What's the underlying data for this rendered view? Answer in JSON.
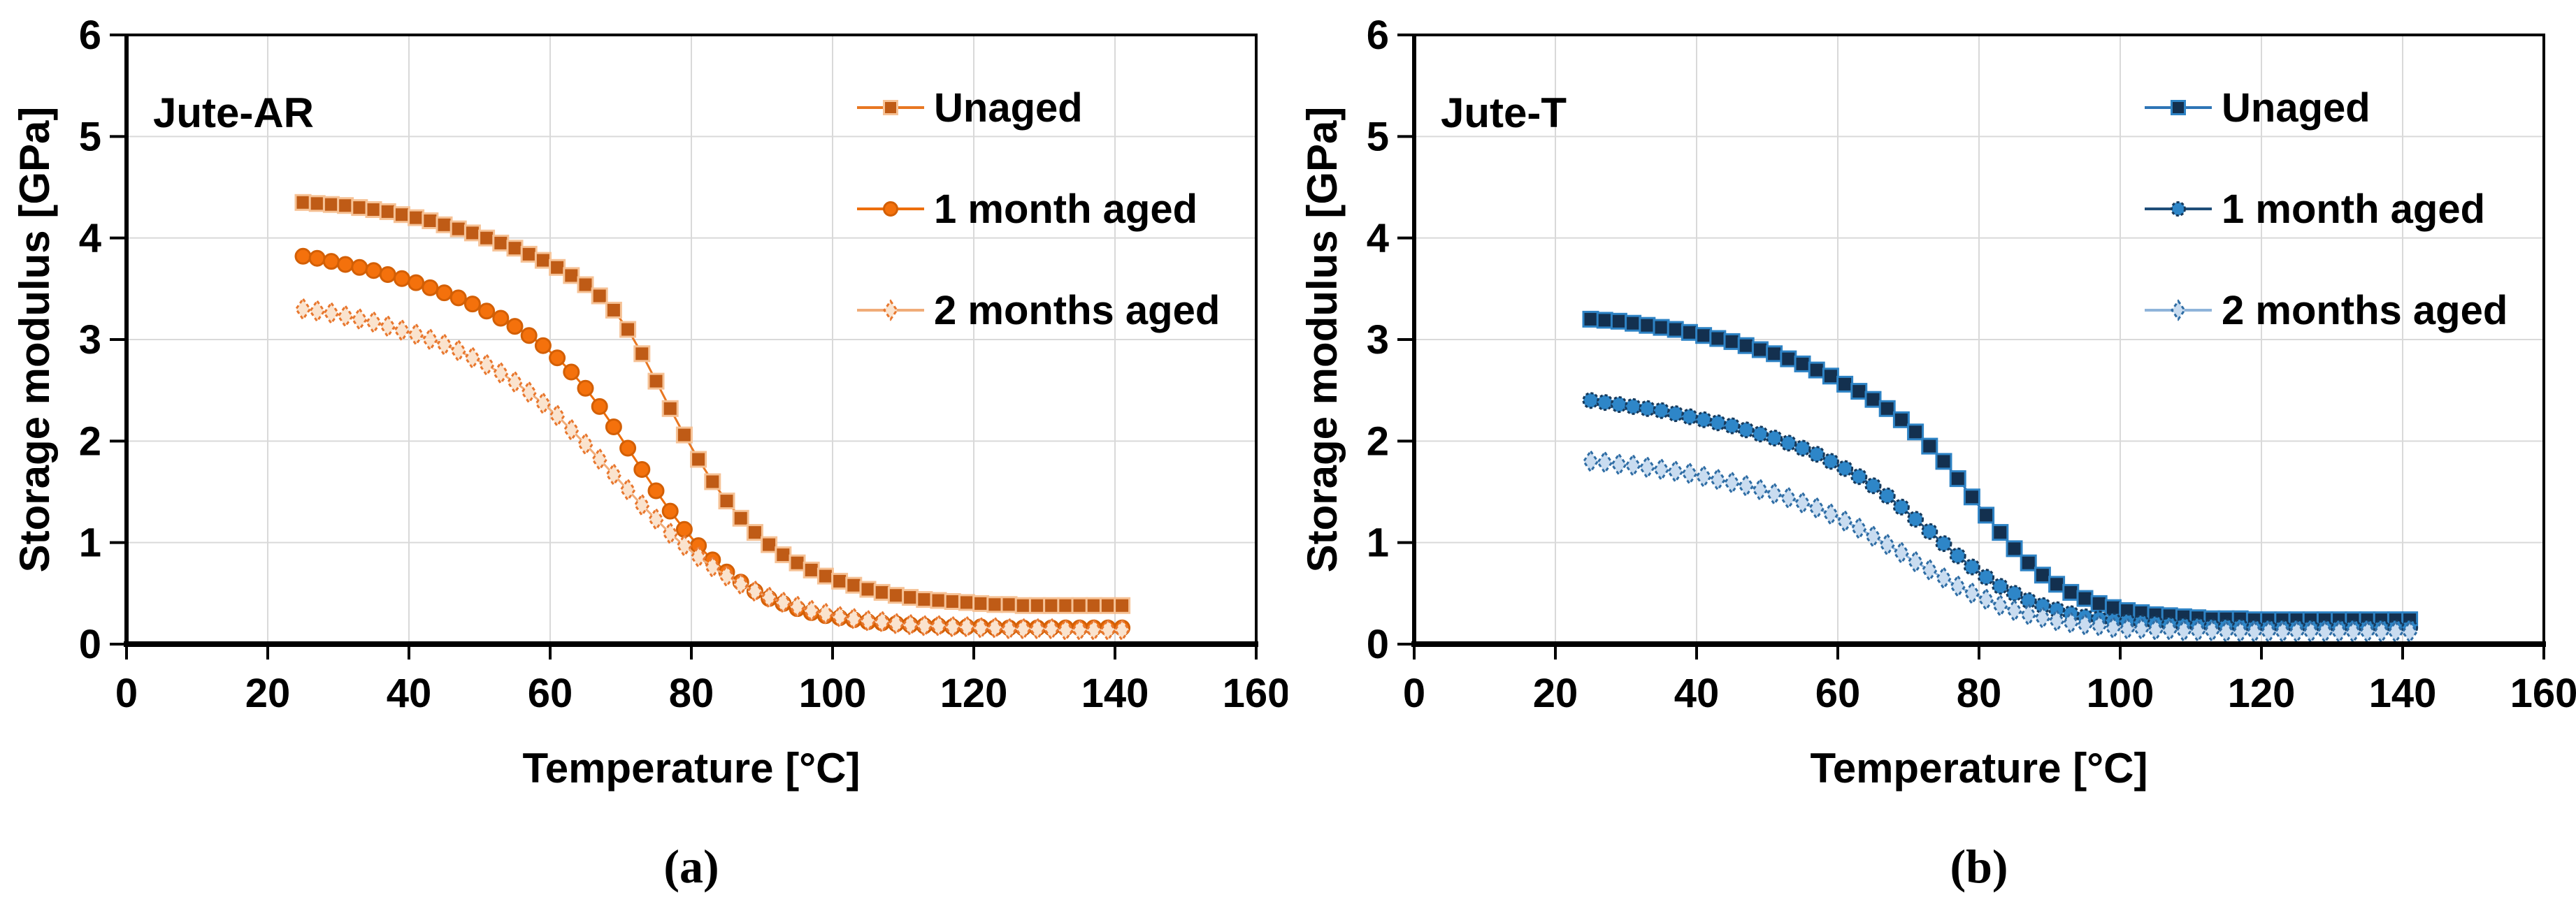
{
  "figure": {
    "background": "#FFFFFF",
    "gridline_color": "#D9D9D9",
    "axis_color": "#000000"
  },
  "chart_data": [
    {
      "type": "line",
      "panel": "a",
      "caption": "(a)",
      "title": "Jute-AR",
      "xlabel": "Temperature [°C]",
      "ylabel": "Storage modulus [GPa]",
      "xlim": [
        0,
        160
      ],
      "ylim": [
        0,
        6
      ],
      "xticks": [
        0,
        20,
        40,
        60,
        80,
        100,
        120,
        140,
        160
      ],
      "yticks": [
        0,
        1,
        2,
        3,
        4,
        5,
        6
      ],
      "grid": true,
      "legend_position": "inside-top-right",
      "x": [
        25,
        27,
        29,
        31,
        33,
        35,
        37,
        39,
        41,
        43,
        45,
        47,
        49,
        51,
        53,
        55,
        57,
        59,
        61,
        63,
        65,
        67,
        69,
        71,
        73,
        75,
        77,
        79,
        81,
        83,
        85,
        87,
        89,
        91,
        93,
        95,
        97,
        99,
        101,
        103,
        105,
        107,
        109,
        111,
        113,
        115,
        117,
        119,
        121,
        123,
        125,
        127,
        129,
        131,
        133,
        135,
        137,
        139,
        141
      ],
      "series": [
        {
          "name": "Unaged",
          "marker": "square",
          "fill": "#BF5B16",
          "stroke": "#F6C296",
          "line": "#E87722",
          "dash": "",
          "values": [
            4.35,
            4.34,
            4.33,
            4.32,
            4.3,
            4.28,
            4.26,
            4.23,
            4.2,
            4.17,
            4.13,
            4.09,
            4.05,
            4.0,
            3.95,
            3.9,
            3.84,
            3.78,
            3.71,
            3.63,
            3.54,
            3.43,
            3.29,
            3.1,
            2.86,
            2.59,
            2.32,
            2.06,
            1.82,
            1.6,
            1.41,
            1.24,
            1.1,
            0.98,
            0.88,
            0.8,
            0.73,
            0.67,
            0.62,
            0.58,
            0.54,
            0.51,
            0.48,
            0.46,
            0.44,
            0.43,
            0.42,
            0.41,
            0.4,
            0.39,
            0.39,
            0.38,
            0.38,
            0.38,
            0.38,
            0.38,
            0.38,
            0.38,
            0.38
          ]
        },
        {
          "name": "1 month aged",
          "marker": "circle",
          "fill": "#F4710C",
          "stroke": "#D35F05",
          "line": "#ED6E0C",
          "dash": "",
          "values": [
            3.82,
            3.8,
            3.77,
            3.74,
            3.71,
            3.68,
            3.64,
            3.6,
            3.56,
            3.51,
            3.46,
            3.41,
            3.35,
            3.28,
            3.21,
            3.13,
            3.04,
            2.94,
            2.82,
            2.68,
            2.52,
            2.34,
            2.14,
            1.93,
            1.72,
            1.51,
            1.31,
            1.13,
            0.97,
            0.83,
            0.71,
            0.61,
            0.52,
            0.45,
            0.4,
            0.35,
            0.31,
            0.28,
            0.26,
            0.24,
            0.22,
            0.21,
            0.2,
            0.19,
            0.18,
            0.18,
            0.17,
            0.17,
            0.17,
            0.16,
            0.16,
            0.16,
            0.16,
            0.16,
            0.16,
            0.16,
            0.16,
            0.16,
            0.16
          ]
        },
        {
          "name": "2 months aged",
          "marker": "diamond",
          "fill": "#FAE3CE",
          "stroke": "#E8772E",
          "line": "#F0AC78",
          "dash": "5 4",
          "values": [
            3.3,
            3.28,
            3.26,
            3.23,
            3.2,
            3.17,
            3.13,
            3.09,
            3.05,
            3.0,
            2.95,
            2.89,
            2.82,
            2.75,
            2.67,
            2.58,
            2.48,
            2.37,
            2.25,
            2.11,
            1.97,
            1.82,
            1.67,
            1.52,
            1.37,
            1.23,
            1.09,
            0.97,
            0.86,
            0.76,
            0.67,
            0.59,
            0.52,
            0.46,
            0.41,
            0.37,
            0.33,
            0.3,
            0.27,
            0.25,
            0.23,
            0.22,
            0.2,
            0.19,
            0.18,
            0.18,
            0.17,
            0.17,
            0.16,
            0.16,
            0.15,
            0.15,
            0.15,
            0.15,
            0.14,
            0.14,
            0.14,
            0.14,
            0.14
          ]
        }
      ]
    },
    {
      "type": "line",
      "panel": "b",
      "caption": "(b)",
      "title": "Jute-T",
      "xlabel": "Temperature [°C]",
      "ylabel": "Storage modulus [GPa]",
      "xlim": [
        0,
        160
      ],
      "ylim": [
        0,
        6
      ],
      "xticks": [
        0,
        20,
        40,
        60,
        80,
        100,
        120,
        140,
        160
      ],
      "yticks": [
        0,
        1,
        2,
        3,
        4,
        5,
        6
      ],
      "grid": true,
      "legend_position": "inside-top-right",
      "x": [
        25,
        27,
        29,
        31,
        33,
        35,
        37,
        39,
        41,
        43,
        45,
        47,
        49,
        51,
        53,
        55,
        57,
        59,
        61,
        63,
        65,
        67,
        69,
        71,
        73,
        75,
        77,
        79,
        81,
        83,
        85,
        87,
        89,
        91,
        93,
        95,
        97,
        99,
        101,
        103,
        105,
        107,
        109,
        111,
        113,
        115,
        117,
        119,
        121,
        123,
        125,
        127,
        129,
        131,
        133,
        135,
        137,
        139,
        141
      ],
      "series": [
        {
          "name": "Unaged",
          "marker": "square",
          "fill": "#13304F",
          "stroke": "#2E83C5",
          "line": "#2E75B6",
          "dash": "",
          "values": [
            3.2,
            3.19,
            3.18,
            3.16,
            3.14,
            3.12,
            3.1,
            3.07,
            3.04,
            3.01,
            2.98,
            2.94,
            2.9,
            2.86,
            2.81,
            2.76,
            2.7,
            2.64,
            2.56,
            2.49,
            2.41,
            2.32,
            2.21,
            2.09,
            1.95,
            1.8,
            1.63,
            1.45,
            1.27,
            1.1,
            0.94,
            0.8,
            0.68,
            0.59,
            0.51,
            0.45,
            0.4,
            0.36,
            0.33,
            0.31,
            0.29,
            0.28,
            0.27,
            0.26,
            0.25,
            0.25,
            0.25,
            0.24,
            0.24,
            0.24,
            0.24,
            0.24,
            0.24,
            0.24,
            0.24,
            0.24,
            0.24,
            0.24,
            0.24
          ]
        },
        {
          "name": "1 month aged",
          "marker": "circle",
          "fill": "#2E86C8",
          "stroke": "#16395B",
          "line": "#1F4E79",
          "dash": "4 3",
          "values": [
            2.4,
            2.38,
            2.36,
            2.34,
            2.32,
            2.3,
            2.27,
            2.24,
            2.21,
            2.18,
            2.15,
            2.11,
            2.07,
            2.03,
            1.98,
            1.93,
            1.87,
            1.8,
            1.73,
            1.65,
            1.56,
            1.46,
            1.35,
            1.23,
            1.11,
            0.99,
            0.87,
            0.76,
            0.66,
            0.57,
            0.5,
            0.43,
            0.38,
            0.34,
            0.3,
            0.27,
            0.25,
            0.23,
            0.22,
            0.21,
            0.2,
            0.19,
            0.18,
            0.18,
            0.17,
            0.17,
            0.17,
            0.16,
            0.16,
            0.16,
            0.16,
            0.16,
            0.16,
            0.16,
            0.16,
            0.16,
            0.16,
            0.16,
            0.16
          ]
        },
        {
          "name": "2 months aged",
          "marker": "diamond",
          "fill": "#C9DCF0",
          "stroke": "#2F6DA4",
          "line": "#8FB4DA",
          "dash": "5 4",
          "values": [
            1.8,
            1.79,
            1.77,
            1.76,
            1.74,
            1.72,
            1.7,
            1.68,
            1.65,
            1.62,
            1.59,
            1.56,
            1.52,
            1.48,
            1.44,
            1.39,
            1.34,
            1.28,
            1.21,
            1.14,
            1.06,
            0.98,
            0.9,
            0.81,
            0.73,
            0.65,
            0.57,
            0.5,
            0.44,
            0.38,
            0.33,
            0.29,
            0.26,
            0.23,
            0.21,
            0.19,
            0.18,
            0.16,
            0.15,
            0.15,
            0.14,
            0.14,
            0.13,
            0.13,
            0.13,
            0.12,
            0.12,
            0.12,
            0.12,
            0.12,
            0.12,
            0.12,
            0.12,
            0.12,
            0.12,
            0.12,
            0.12,
            0.12,
            0.12
          ]
        }
      ]
    }
  ]
}
